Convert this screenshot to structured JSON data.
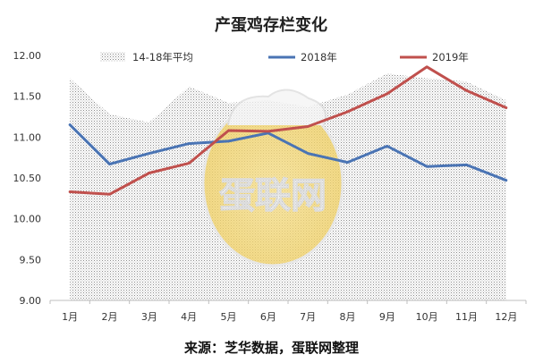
{
  "chart_data": {
    "type": "line",
    "title": "产蛋鸡存栏变化",
    "categories": [
      "1月",
      "2月",
      "3月",
      "4月",
      "5月",
      "6月",
      "7月",
      "8月",
      "9月",
      "10月",
      "11月",
      "12月"
    ],
    "ylim": [
      9.0,
      12.0
    ],
    "yticks": [
      "9.00",
      "9.50",
      "10.00",
      "10.50",
      "11.00",
      "11.50",
      "12.00"
    ],
    "grid": false,
    "legend_position": "top",
    "series": [
      {
        "name": "14-18年平均",
        "kind": "area",
        "color": "#bfbfbf",
        "values": [
          11.72,
          11.28,
          11.18,
          11.62,
          11.42,
          11.45,
          11.37,
          11.52,
          11.78,
          11.72,
          11.68,
          11.45
        ]
      },
      {
        "name": "2018年",
        "kind": "line",
        "color": "#4a74b4",
        "values": [
          11.15,
          10.67,
          10.8,
          10.92,
          10.95,
          11.05,
          10.8,
          10.69,
          10.89,
          10.64,
          10.66,
          10.47
        ]
      },
      {
        "name": "2019年",
        "kind": "line",
        "color": "#c0504d",
        "values": [
          10.33,
          10.3,
          10.56,
          10.68,
          11.08,
          11.07,
          11.13,
          11.31,
          11.53,
          11.86,
          11.57,
          11.36
        ]
      }
    ]
  },
  "watermark_text": "蛋联网",
  "source_note": "来源：芝华数据，蛋联网整理"
}
